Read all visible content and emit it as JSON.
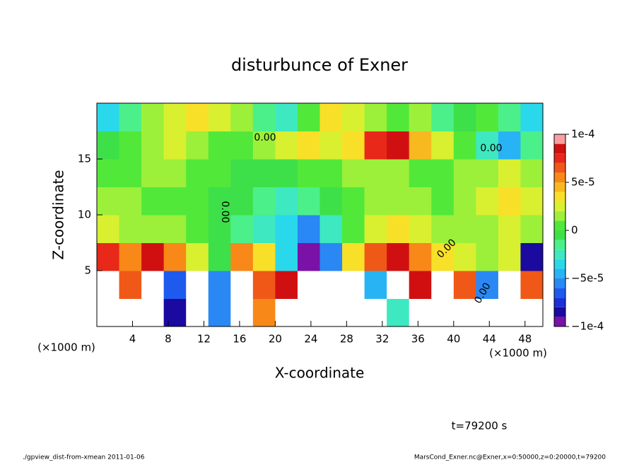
{
  "chart_data": {
    "type": "contour",
    "title": "disturbunce of Exner",
    "x_label": "X-coordinate",
    "y_label": "Z-coordinate",
    "x_unit": "(×1000 m)",
    "time_label": "t=79200 s",
    "footer_left": "./gpview_dist-from-xmean  2011-01-06",
    "footer_right": "MarsCond_Exner.nc@Exner,x=0:50000,z=0:20000,t=79200",
    "contour_labels": [
      "0.00",
      "0.00",
      "0.00",
      "0.00",
      "0.00"
    ],
    "xlim": [
      0,
      50
    ],
    "ylim": [
      0,
      20
    ],
    "xticks": [
      4,
      8,
      12,
      16,
      20,
      24,
      28,
      32,
      36,
      40,
      44,
      48
    ],
    "yticks": [
      5,
      10,
      15
    ],
    "x": [
      1.25,
      3.75,
      6.25,
      8.75,
      11.25,
      13.75,
      16.25,
      18.75,
      21.25,
      23.75,
      26.25,
      28.75,
      31.25,
      33.75,
      36.25,
      38.75,
      41.25,
      43.75,
      46.25,
      48.75
    ],
    "y": [
      1.25,
      3.75,
      6.25,
      8.75,
      11.25,
      13.75,
      16.25,
      18.75
    ],
    "z": [
      [
        0.00015,
        0.00015,
        0.00012,
        -8e-05,
        0.00015,
        -6e-05,
        0.00015,
        5e-05,
        0.00015,
        0.00015,
        0.00012,
        0.00015,
        0.00015,
        -3e-05,
        0.00012,
        0.00015,
        0.00015,
        0.00012,
        0.00015,
        0.00015
      ],
      [
        0.00012,
        6e-05,
        0.00012,
        -7e-05,
        0.00012,
        -6e-05,
        0.00012,
        6e-05,
        8e-05,
        0.00012,
        0.00012,
        0.00012,
        -5e-05,
        0.00012,
        8e-05,
        0.00012,
        6e-05,
        -6e-05,
        0.00012,
        6e-05
      ],
      [
        7e-05,
        5e-05,
        8e-05,
        5e-05,
        2e-05,
        -1e-05,
        5e-05,
        3e-05,
        -4e-05,
        -9e-05,
        -6e-05,
        3e-05,
        6e-05,
        8e-05,
        5e-05,
        3e-05,
        2e-05,
        1e-05,
        2e-05,
        -8e-05
      ],
      [
        2e-05,
        1e-05,
        1e-05,
        1e-05,
        0,
        -1e-05,
        -2e-05,
        -3e-05,
        -4e-05,
        -6e-05,
        -3e-05,
        0,
        2e-05,
        3e-05,
        2e-05,
        1e-05,
        1e-05,
        1e-05,
        2e-05,
        1e-05
      ],
      [
        1e-05,
        1e-05,
        0,
        0,
        0,
        -1e-05,
        -1e-05,
        -2e-05,
        -3e-05,
        -2e-05,
        -1e-05,
        0,
        1e-05,
        1e-05,
        1e-05,
        0,
        1e-05,
        2e-05,
        3e-05,
        2e-05
      ],
      [
        0,
        0,
        1e-05,
        1e-05,
        0,
        0,
        -1e-05,
        -1e-05,
        -1e-05,
        0,
        0,
        1e-05,
        1e-05,
        1e-05,
        0,
        0,
        1e-05,
        1e-05,
        2e-05,
        1e-05
      ],
      [
        -1e-05,
        0,
        1e-05,
        2e-05,
        1e-05,
        0,
        0,
        1e-05,
        2e-05,
        3e-05,
        2e-05,
        3e-05,
        7e-05,
        8e-05,
        4e-05,
        2e-05,
        0,
        -3e-05,
        -5e-05,
        -2e-05
      ],
      [
        -4e-05,
        -2e-05,
        1e-05,
        2e-05,
        3e-05,
        2e-05,
        1e-05,
        -2e-05,
        -3e-05,
        0,
        3e-05,
        2e-05,
        1e-05,
        0,
        1e-05,
        -2e-05,
        -1e-05,
        0,
        -2e-05,
        -4e-05
      ]
    ],
    "clim": [
      -0.0001,
      0.0001
    ],
    "cticks": [
      {
        "value": 0.0001,
        "label": "1e-4"
      },
      {
        "value": 5e-05,
        "label": "5e-5"
      },
      0,
      {
        "value": -5e-05,
        "label": "−5e-5"
      },
      {
        "value": -0.0001,
        "label": "−1e-4"
      }
    ],
    "colors": [
      "#7a12a8",
      "#1a0aa0",
      "#1a30d8",
      "#1e5aee",
      "#2a88f4",
      "#28b4f4",
      "#2ad8ec",
      "#3ee8c0",
      "#4cf08a",
      "#3ee04a",
      "#52e83a",
      "#9cf03a",
      "#d8f030",
      "#f8e028",
      "#f8b820",
      "#f88818",
      "#f05818",
      "#e82818",
      "#d01010",
      "#f8a0a0"
    ],
    "over_color": "#ffffff"
  }
}
